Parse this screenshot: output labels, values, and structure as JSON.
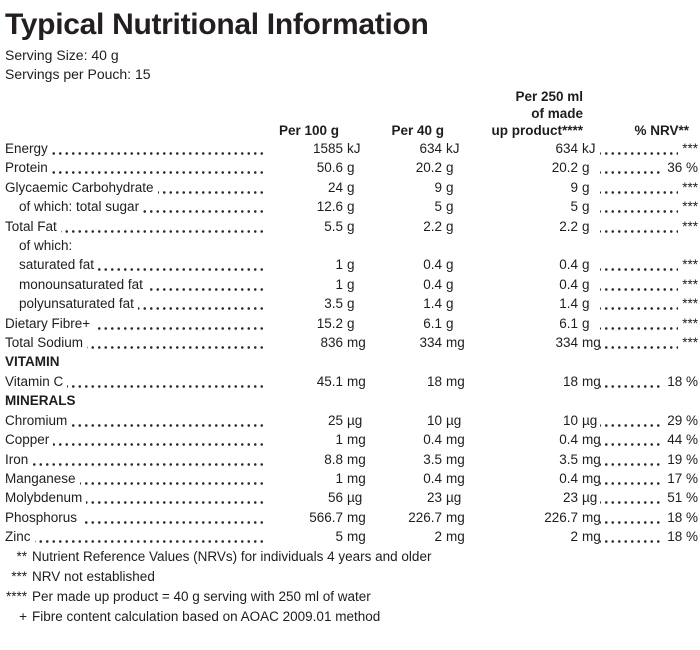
{
  "title": "Typical Nutritional Information",
  "serving": {
    "size": "Serving Size: 40 g",
    "per_pouch": "Servings per Pouch: 15"
  },
  "columns": {
    "col1": "Per 100 g",
    "col2": "Per 40 g",
    "col3_line1": "Per 250 ml",
    "col3_line2": "of made",
    "col3_line3": "up product****",
    "col4": "% NRV**"
  },
  "rows": [
    {
      "type": "data",
      "indent": false,
      "label": "Energy",
      "c1": {
        "v": "1585",
        "u": "kJ"
      },
      "c2": {
        "v": "634",
        "u": "kJ"
      },
      "c3": {
        "v": "634",
        "u": "kJ"
      },
      "c4": "***"
    },
    {
      "type": "data",
      "indent": false,
      "label": "Protein",
      "c1": {
        "v": "50.6",
        "u": "g"
      },
      "c2": {
        "v": "20.2",
        "u": "g"
      },
      "c3": {
        "v": "20.2",
        "u": "g"
      },
      "c4": "36 %"
    },
    {
      "type": "data",
      "indent": false,
      "label": "Glycaemic Carbohydrate",
      "c1": {
        "v": "24",
        "u": "g"
      },
      "c2": {
        "v": "9",
        "u": "g"
      },
      "c3": {
        "v": "9",
        "u": "g"
      },
      "c4": "***"
    },
    {
      "type": "data",
      "indent": true,
      "label": "of which: total sugar",
      "c1": {
        "v": "12.6",
        "u": "g"
      },
      "c2": {
        "v": "5",
        "u": "g"
      },
      "c3": {
        "v": "5",
        "u": "g"
      },
      "c4": "***"
    },
    {
      "type": "data",
      "indent": false,
      "label": "Total Fat",
      "c1": {
        "v": "5.5",
        "u": "g"
      },
      "c2": {
        "v": "2.2",
        "u": "g"
      },
      "c3": {
        "v": "2.2",
        "u": "g"
      },
      "c4": "***"
    },
    {
      "type": "labelonly",
      "indent": true,
      "label": "of which:"
    },
    {
      "type": "data",
      "indent": true,
      "label": "saturated fat",
      "c1": {
        "v": "1",
        "u": "g"
      },
      "c2": {
        "v": "0.4",
        "u": "g"
      },
      "c3": {
        "v": "0.4",
        "u": "g"
      },
      "c4": "***"
    },
    {
      "type": "data",
      "indent": true,
      "label": "monounsaturated fat",
      "c1": {
        "v": "1",
        "u": "g"
      },
      "c2": {
        "v": "0.4",
        "u": "g"
      },
      "c3": {
        "v": "0.4",
        "u": "g"
      },
      "c4": "***"
    },
    {
      "type": "data",
      "indent": true,
      "label": "polyunsaturated fat",
      "c1": {
        "v": "3.5",
        "u": "g"
      },
      "c2": {
        "v": "1.4",
        "u": "g"
      },
      "c3": {
        "v": "1.4",
        "u": "g"
      },
      "c4": "***"
    },
    {
      "type": "data",
      "indent": false,
      "label": "Dietary Fibre+",
      "c1": {
        "v": "15.2",
        "u": "g"
      },
      "c2": {
        "v": "6.1",
        "u": "g"
      },
      "c3": {
        "v": "6.1",
        "u": "g"
      },
      "c4": "***"
    },
    {
      "type": "data",
      "indent": false,
      "label": "Total Sodium",
      "c1": {
        "v": "836",
        "u": "mg"
      },
      "c2": {
        "v": "334",
        "u": "mg"
      },
      "c3": {
        "v": "334",
        "u": "mg"
      },
      "c4": "***"
    },
    {
      "type": "section",
      "indent": false,
      "label": "VITAMIN"
    },
    {
      "type": "data",
      "indent": false,
      "label": "Vitamin C",
      "c1": {
        "v": "45.1",
        "u": "mg"
      },
      "c2": {
        "v": "18",
        "u": "mg"
      },
      "c3": {
        "v": "18",
        "u": "mg"
      },
      "c4": "18 %"
    },
    {
      "type": "section",
      "indent": false,
      "label": "MINERALS"
    },
    {
      "type": "data",
      "indent": false,
      "label": "Chromium",
      "c1": {
        "v": "25",
        "u": "µg"
      },
      "c2": {
        "v": "10",
        "u": "µg"
      },
      "c3": {
        "v": "10",
        "u": "µg"
      },
      "c4": "29 %"
    },
    {
      "type": "data",
      "indent": false,
      "label": "Copper",
      "c1": {
        "v": "1",
        "u": "mg"
      },
      "c2": {
        "v": "0.4",
        "u": "mg"
      },
      "c3": {
        "v": "0.4",
        "u": "mg"
      },
      "c4": "44 %"
    },
    {
      "type": "data",
      "indent": false,
      "label": "Iron",
      "c1": {
        "v": "8.8",
        "u": "mg"
      },
      "c2": {
        "v": "3.5",
        "u": "mg"
      },
      "c3": {
        "v": "3.5",
        "u": "mg"
      },
      "c4": "19 %"
    },
    {
      "type": "data",
      "indent": false,
      "label": "Manganese",
      "c1": {
        "v": "1",
        "u": "mg"
      },
      "c2": {
        "v": "0.4",
        "u": "mg"
      },
      "c3": {
        "v": "0.4",
        "u": "mg"
      },
      "c4": "17 %"
    },
    {
      "type": "data",
      "indent": false,
      "label": "Molybdenum",
      "c1": {
        "v": "56",
        "u": "µg"
      },
      "c2": {
        "v": "23",
        "u": "µg"
      },
      "c3": {
        "v": "23",
        "u": "µg"
      },
      "c4": "51 %"
    },
    {
      "type": "data",
      "indent": false,
      "label": "Phosphorus",
      "c1": {
        "v": "566.7",
        "u": "mg"
      },
      "c2": {
        "v": "226.7",
        "u": "mg"
      },
      "c3": {
        "v": "226.7",
        "u": "mg"
      },
      "c4": "18 %"
    },
    {
      "type": "data",
      "indent": false,
      "label": "Zinc",
      "c1": {
        "v": "5",
        "u": "mg"
      },
      "c2": {
        "v": "2",
        "u": "mg"
      },
      "c3": {
        "v": "2",
        "u": "mg"
      },
      "c4": "18 %"
    }
  ],
  "footnotes": [
    {
      "marker": "**",
      "text": "Nutrient Reference Values (NRVs) for individuals 4 years and older"
    },
    {
      "marker": "***",
      "text": "NRV not established"
    },
    {
      "marker": "****",
      "text": "Per made up product = 40 g serving with 250 ml of water"
    },
    {
      "marker": "+",
      "text": "Fibre content calculation based on AOAC 2009.01 method"
    }
  ]
}
